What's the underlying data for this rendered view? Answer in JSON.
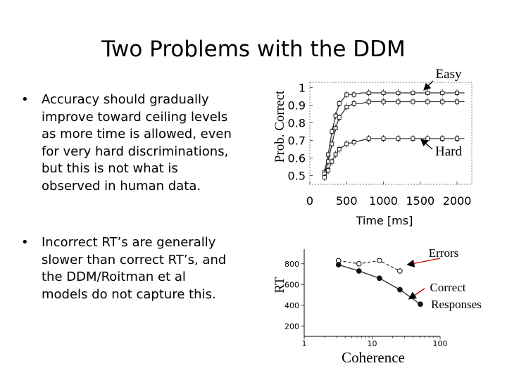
{
  "slide": {
    "title": "Two Problems with the DDM",
    "bullets": [
      {
        "marker": "•",
        "text": "Accuracy should gradually improve toward ceiling levels as more time is allowed, even for very hard discriminations, but this is not what is observed in human data."
      },
      {
        "marker": "•",
        "text": "Incorrect RT’s are generally slower than correct RT’s, and the DDM/Roitman et al models do not capture this."
      }
    ]
  },
  "chart_data": [
    {
      "type": "line",
      "ylabel": "Prob. Correct",
      "xlabel": "Time [ms]",
      "xlim": [
        0,
        2200
      ],
      "ylim": [
        0.45,
        1.03
      ],
      "x_ticks": [
        0,
        500,
        1000,
        1500,
        2000
      ],
      "y_ticks": [
        0.5,
        0.6,
        0.7,
        0.8,
        0.9,
        1
      ],
      "annotations": [
        "Easy",
        "Hard"
      ],
      "series": [
        {
          "x": [
            200,
            250,
            300,
            350,
            400,
            500,
            600,
            700,
            800,
            900,
            1000,
            1100,
            1200,
            1300,
            1400,
            1500,
            1600,
            1700,
            1800,
            1900,
            2000,
            2100
          ],
          "values": [
            0.52,
            0.62,
            0.75,
            0.84,
            0.91,
            0.96,
            0.96,
            0.97,
            0.97,
            0.97,
            0.97,
            0.97,
            0.97,
            0.97,
            0.97,
            0.97,
            0.97,
            0.97,
            0.97,
            0.97,
            0.97,
            0.97
          ]
        },
        {
          "x": [
            200,
            250,
            300,
            350,
            400,
            500,
            600,
            700,
            800,
            900,
            1000,
            1100,
            1200,
            1300,
            1400,
            1500,
            1600,
            1700,
            1800,
            1900,
            2000,
            2100
          ],
          "values": [
            0.51,
            0.58,
            0.68,
            0.77,
            0.83,
            0.89,
            0.91,
            0.91,
            0.92,
            0.92,
            0.92,
            0.92,
            0.92,
            0.92,
            0.92,
            0.92,
            0.92,
            0.92,
            0.92,
            0.92,
            0.92,
            0.92
          ]
        },
        {
          "x": [
            200,
            250,
            300,
            350,
            400,
            500,
            600,
            700,
            800,
            900,
            1000,
            1100,
            1200,
            1300,
            1400,
            1500,
            1600,
            1700,
            1800,
            1900,
            2000,
            2100
          ],
          "values": [
            0.49,
            0.53,
            0.58,
            0.62,
            0.65,
            0.68,
            0.69,
            0.7,
            0.71,
            0.71,
            0.71,
            0.71,
            0.71,
            0.71,
            0.71,
            0.71,
            0.71,
            0.71,
            0.71,
            0.71,
            0.71,
            0.71
          ]
        }
      ]
    },
    {
      "type": "line",
      "ylabel": "RT",
      "xlabel": "Coherence",
      "xscale": "log",
      "xlim": [
        1,
        100
      ],
      "ylim": [
        100,
        900
      ],
      "x_ticks": [
        1,
        10,
        100
      ],
      "y_ticks": [
        200,
        400,
        600,
        800
      ],
      "series": [
        {
          "name": "Errors",
          "style": "dashed",
          "marker": "open",
          "x": [
            3.2,
            6.4,
            12.8,
            25.6
          ],
          "values": [
            830,
            800,
            830,
            730
          ]
        },
        {
          "name": "Correct Responses",
          "style": "solid",
          "marker": "filled",
          "x": [
            3.2,
            6.4,
            12.8,
            25.6,
            51.2
          ],
          "values": [
            790,
            730,
            660,
            550,
            410
          ]
        }
      ]
    }
  ]
}
